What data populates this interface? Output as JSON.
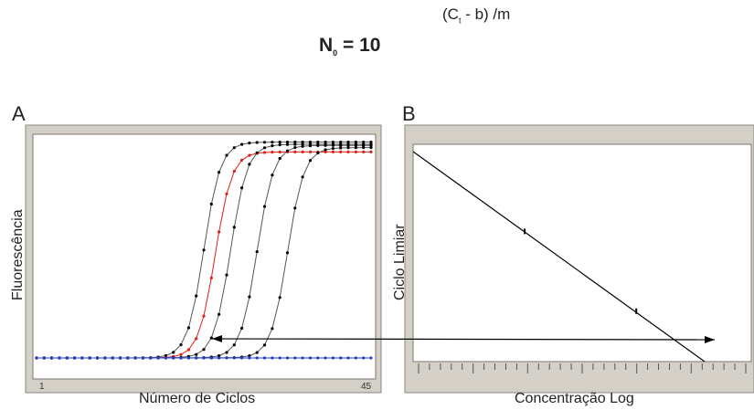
{
  "formula": {
    "lhs": "N",
    "lhs_sub": "0",
    "equals": "= 10",
    "exponent_pre": "(C",
    "exponent_sub": "t",
    "exponent_post": " - b) /m"
  },
  "chart_data": [
    {
      "type": "line",
      "panel_label": "A",
      "title": "",
      "xlabel": "Número de Ciclos",
      "ylabel": "Fluorescência",
      "x_tick_labels": [
        "1",
        "45"
      ],
      "xlim": [
        1,
        45
      ],
      "ylim": [
        0,
        1
      ],
      "series": [
        {
          "color": "#000000",
          "midpoint_cycle": 23.0,
          "plateau": 0.985
        },
        {
          "color": "#e0201a",
          "midpoint_cycle": 24.5,
          "plateau": 0.94
        },
        {
          "color": "#000000",
          "midpoint_cycle": 26.5,
          "plateau": 0.975
        },
        {
          "color": "#000000",
          "midpoint_cycle": 30.0,
          "plateau": 0.97
        },
        {
          "color": "#000000",
          "midpoint_cycle": 34.0,
          "plateau": 0.96
        },
        {
          "color": "#1f3fd6",
          "midpoint_cycle": null,
          "plateau": 0.0
        }
      ],
      "annotation": "double-headed arrow linking panel A to panel B"
    },
    {
      "type": "line",
      "panel_label": "B",
      "title": "",
      "xlabel": "Concentração Log",
      "ylabel": "Ciclo Limiar",
      "xlim": [
        0,
        1
      ],
      "ylim": [
        0,
        1
      ],
      "line": {
        "x": [
          0,
          1
        ],
        "y": [
          1.0,
          -0.16
        ]
      },
      "points": [
        {
          "x": 0.33,
          "y": 0.62
        },
        {
          "x": 0.66,
          "y": 0.24
        }
      ],
      "minor_ticks": 30
    }
  ],
  "colors": {
    "frame": "#d4d0c8",
    "plot_bg": "#ffffff",
    "black_series": "#000000",
    "red_series": "#e0201a",
    "blue_series": "#1f3fd6"
  }
}
